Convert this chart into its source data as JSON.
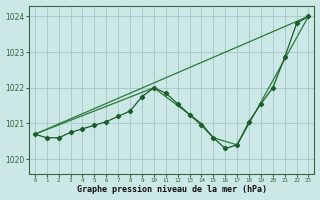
{
  "title": "Graphe pression niveau de la mer (hPa)",
  "background_color": "#cce8e6",
  "plot_bg_color": "#cce8e6",
  "grid_color": "#aacccc",
  "line_color_dark": "#1a5c2a",
  "line_color_mid": "#2d7a3a",
  "xlim": [
    -0.5,
    23.5
  ],
  "ylim": [
    1019.6,
    1024.3
  ],
  "yticks": [
    1020,
    1021,
    1022,
    1023,
    1024
  ],
  "xticks": [
    0,
    1,
    2,
    3,
    4,
    5,
    6,
    7,
    8,
    9,
    10,
    11,
    12,
    13,
    14,
    15,
    16,
    17,
    18,
    19,
    20,
    21,
    22,
    23
  ],
  "series1_x": [
    0,
    1,
    2,
    3,
    4,
    5,
    6,
    7,
    8,
    9,
    10,
    11,
    12,
    13,
    14,
    15,
    16,
    17,
    18,
    19,
    20,
    21,
    22,
    23
  ],
  "series1_y": [
    1020.7,
    1020.6,
    1020.6,
    1020.75,
    1020.85,
    1020.95,
    1021.05,
    1021.2,
    1021.35,
    1021.75,
    1022.0,
    1021.85,
    1021.55,
    1021.25,
    1020.95,
    1020.6,
    1020.3,
    1020.4,
    1021.05,
    1021.55,
    1022.0,
    1022.85,
    1023.8,
    1024.0
  ],
  "series2_x": [
    0,
    23
  ],
  "series2_y": [
    1020.7,
    1024.0
  ],
  "series3_x": [
    0,
    10,
    14,
    15,
    17,
    19,
    23
  ],
  "series3_y": [
    1020.7,
    1022.0,
    1021.0,
    1020.6,
    1020.4,
    1021.6,
    1024.0
  ],
  "border_color": "#336644"
}
